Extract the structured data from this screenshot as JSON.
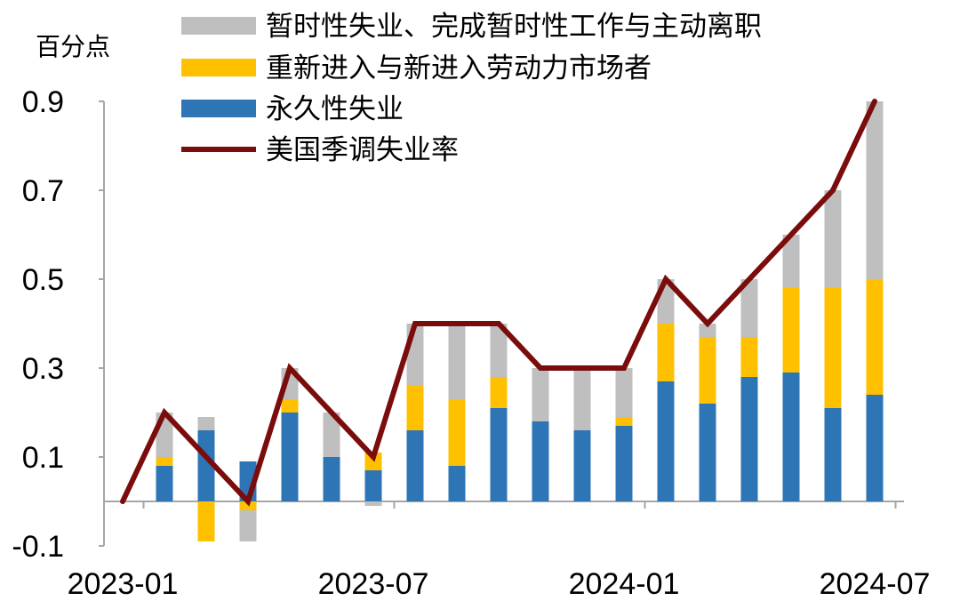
{
  "chart_data": {
    "type": "bar",
    "stacked": true,
    "y_unit_label": "百分点",
    "ylim": [
      -0.1,
      0.9
    ],
    "yticks": [
      -0.1,
      0.1,
      0.3,
      0.5,
      0.7,
      0.9
    ],
    "ytick_labels": [
      "-0.1",
      "0.1",
      "0.3",
      "0.5",
      "0.7",
      "0.9"
    ],
    "categories": [
      "2023-01",
      "2023-02",
      "2023-03",
      "2023-04",
      "2023-05",
      "2023-06",
      "2023-07",
      "2023-08",
      "2023-09",
      "2023-10",
      "2023-11",
      "2023-12",
      "2024-01",
      "2024-02",
      "2024-03",
      "2024-04",
      "2024-05",
      "2024-06",
      "2024-07"
    ],
    "x_tick_labels": [
      {
        "category": "2023-01",
        "label": "2023-01"
      },
      {
        "category": "2023-07",
        "label": "2023-07"
      },
      {
        "category": "2024-01",
        "label": "2024-01"
      },
      {
        "category": "2024-07",
        "label": "2024-07"
      }
    ],
    "grid": false,
    "legend_position": "top",
    "series": [
      {
        "name": "永久性失业",
        "kind": "bar",
        "color": "#2e75b6",
        "values": [
          null,
          0.08,
          0.16,
          0.09,
          0.2,
          0.1,
          0.07,
          0.16,
          0.08,
          0.21,
          0.18,
          0.16,
          0.17,
          0.27,
          0.22,
          0.28,
          0.29,
          0.21,
          0.24
        ]
      },
      {
        "name": "重新进入与新进入劳动力市场者",
        "kind": "bar",
        "color": "#ffc000",
        "values": [
          null,
          0.02,
          -0.09,
          -0.02,
          0.03,
          0.0,
          0.04,
          0.1,
          0.15,
          0.07,
          0.0,
          0.0,
          0.02,
          0.13,
          0.15,
          0.09,
          0.19,
          0.27,
          0.26
        ]
      },
      {
        "name": "暂时性失业、完成暂时性工作与主动离职",
        "kind": "bar",
        "color": "#bfbfbf",
        "values": [
          null,
          0.1,
          0.03,
          -0.07,
          0.07,
          0.1,
          -0.01,
          0.14,
          0.17,
          0.12,
          0.12,
          0.14,
          0.11,
          0.1,
          0.03,
          0.13,
          0.12,
          0.22,
          0.4
        ]
      },
      {
        "name": "美国季调失业率",
        "kind": "line",
        "color": "#7b0c0c",
        "values": [
          0.0,
          0.2,
          0.1,
          0.0,
          0.3,
          0.2,
          0.1,
          0.4,
          0.4,
          0.4,
          0.3,
          0.3,
          0.3,
          0.5,
          0.4,
          0.5,
          0.6,
          0.7,
          0.9
        ]
      }
    ],
    "legend_order": [
      "暂时性失业、完成暂时性工作与主动离职",
      "重新进入与新进入劳动力市场者",
      "永久性失业",
      "美国季调失业率"
    ]
  }
}
